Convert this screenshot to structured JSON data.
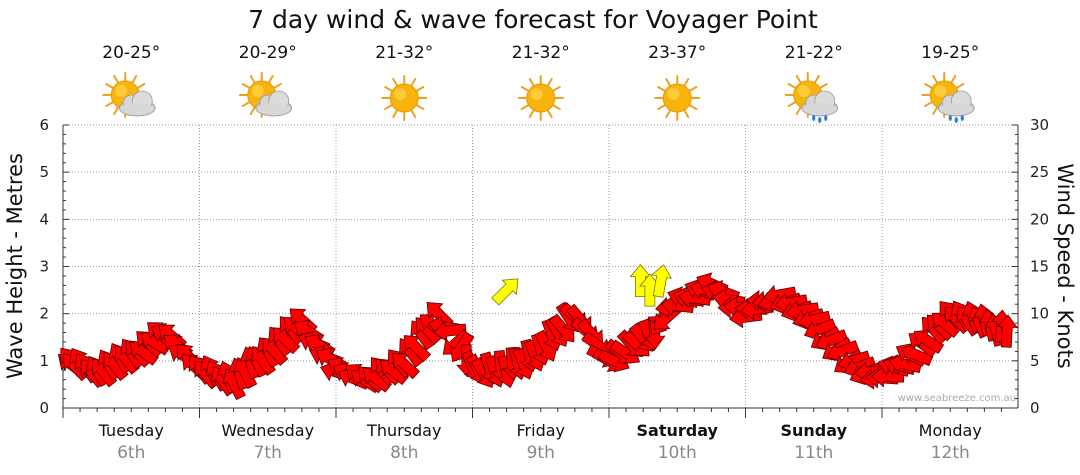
{
  "chart_data": {
    "type": "line",
    "title": "7 day wind & wave forecast for Voyager Point",
    "ylabel_left": "Wave Height - Metres",
    "ylabel_right": "Wind Speed - Knots",
    "ylim_left": [
      0,
      6
    ],
    "ylim_right": [
      0,
      30
    ],
    "yticks_left": [
      "0",
      "1",
      "2",
      "3",
      "4",
      "5",
      "6"
    ],
    "yticks_right": [
      "0",
      "5",
      "10",
      "15",
      "20",
      "25",
      "30"
    ],
    "grid": true,
    "watermark": "www.seabreeze.com.au",
    "days": [
      {
        "name": "Tuesday",
        "date": "6th",
        "temp": "20-25°",
        "weather": "partly-cloudy-icon",
        "bold": false
      },
      {
        "name": "Wednesday",
        "date": "7th",
        "temp": "20-29°",
        "weather": "partly-cloudy-icon",
        "bold": false
      },
      {
        "name": "Thursday",
        "date": "8th",
        "temp": "21-32°",
        "weather": "sunny-icon",
        "bold": false
      },
      {
        "name": "Friday",
        "date": "9th",
        "temp": "21-32°",
        "weather": "sunny-icon",
        "bold": false
      },
      {
        "name": "Saturday",
        "date": "10th",
        "temp": "23-37°",
        "weather": "sunny-icon",
        "bold": true
      },
      {
        "name": "Sunday",
        "date": "11th",
        "temp": "21-22°",
        "weather": "rain-shower-icon",
        "bold": true
      },
      {
        "name": "Monday",
        "date": "12th",
        "temp": "19-25°",
        "weather": "rain-shower-icon",
        "bold": false
      }
    ],
    "series": [
      {
        "name": "Wind Speed - Knots",
        "x_days": [
          0.0,
          0.25,
          0.5,
          0.75,
          1.0,
          1.25,
          1.5,
          1.75,
          2.0,
          2.25,
          2.5,
          2.75,
          3.0,
          3.25,
          3.5,
          3.75,
          4.0,
          4.25,
          4.5,
          4.75,
          5.0,
          5.25,
          5.5,
          5.75,
          6.0,
          6.25,
          6.5,
          6.75,
          7.0
        ],
        "values": [
          5,
          4,
          5.5,
          8,
          4,
          3,
          6,
          9,
          4,
          3,
          5,
          10,
          4,
          4,
          6,
          10,
          5,
          7,
          11,
          13,
          10,
          12,
          9,
          5,
          3,
          6,
          10,
          9,
          8
        ],
        "direction_deg": [
          225,
          240,
          230,
          210,
          230,
          250,
          240,
          215,
          200,
          220,
          230,
          225,
          60,
          80,
          70,
          50,
          30,
          45,
          190,
          200,
          180,
          170,
          160,
          150,
          180,
          210,
          230,
          250,
          290
        ],
        "color": [
          "#ff0000"
        ]
      }
    ],
    "highlights": [
      {
        "x_day": 3.25,
        "wind": 12.5,
        "direction_deg": 45,
        "color": "#ffff00"
      },
      {
        "x_day": 4.23,
        "wind": 13.5,
        "direction_deg": 0,
        "color": "#ffff00"
      },
      {
        "x_day": 4.3,
        "wind": 12.5,
        "direction_deg": 0,
        "color": "#ffff00"
      },
      {
        "x_day": 4.38,
        "wind": 13.5,
        "direction_deg": 10,
        "color": "#ffff00"
      }
    ]
  }
}
